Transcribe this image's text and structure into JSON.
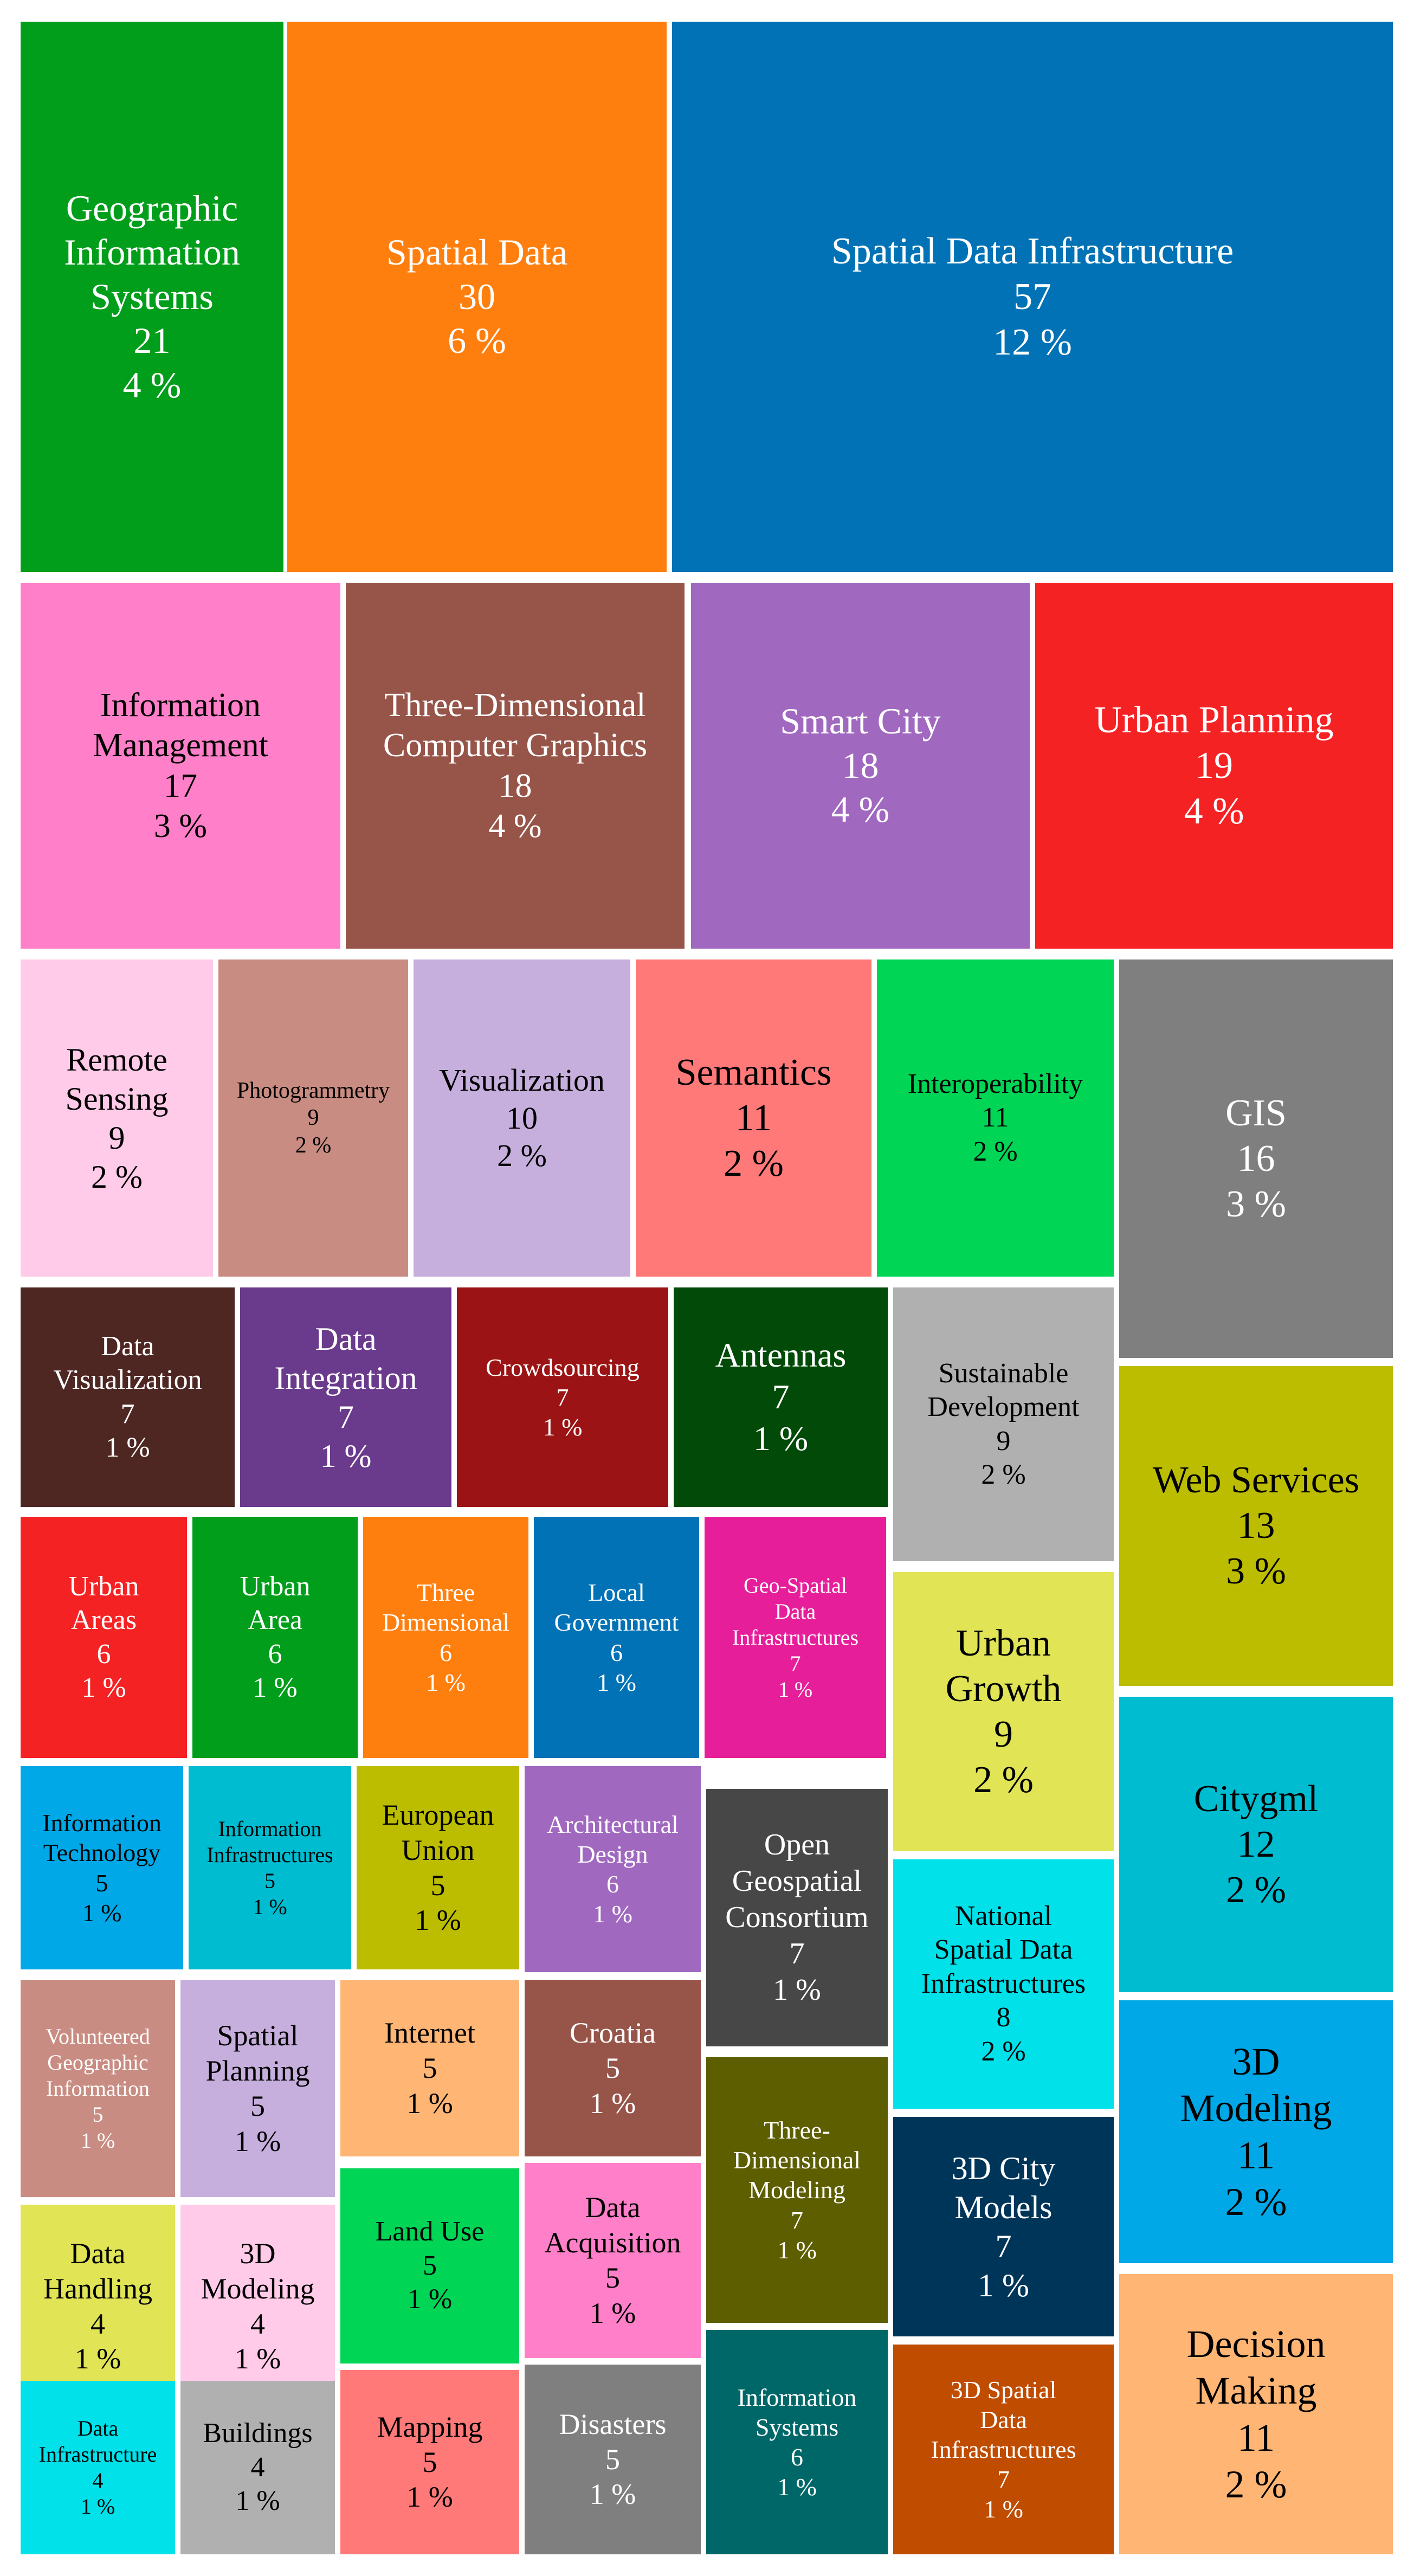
{
  "chart_data": {
    "type": "treemap",
    "title": "",
    "items": [
      {
        "label": "Geographic\nInformation\nSystems",
        "value": 21,
        "percent": "4 %",
        "color": "#009e1a",
        "text_color": "#ffffff"
      },
      {
        "label": "Spatial Data",
        "value": 30,
        "percent": "6 %",
        "color": "#ff7f0e",
        "text_color": "#ffffff"
      },
      {
        "label": "Spatial Data Infrastructure",
        "value": 57,
        "percent": "12 %",
        "color": "#0072b5",
        "text_color": "#ffffff"
      },
      {
        "label": "Information\nManagement",
        "value": 17,
        "percent": "3 %",
        "color": "#ff7fc8",
        "text_color": "#000000"
      },
      {
        "label": "Three-Dimensional\nComputer Graphics",
        "value": 18,
        "percent": "4 %",
        "color": "#975448",
        "text_color": "#ffffff"
      },
      {
        "label": "Smart City",
        "value": 18,
        "percent": "4 %",
        "color": "#a068bf",
        "text_color": "#ffffff"
      },
      {
        "label": "Urban Planning",
        "value": 19,
        "percent": "4 %",
        "color": "#f52224",
        "text_color": "#ffffff"
      },
      {
        "label": "Remote\nSensing",
        "value": 9,
        "percent": "2 %",
        "color": "#ffcbe9",
        "text_color": "#000000"
      },
      {
        "label": "Photogrammetry",
        "value": 9,
        "percent": "2 %",
        "color": "#c98c82",
        "text_color": "#000000"
      },
      {
        "label": "Visualization",
        "value": 10,
        "percent": "2 %",
        "color": "#c7afdd",
        "text_color": "#000000"
      },
      {
        "label": "Semantics",
        "value": 11,
        "percent": "2 %",
        "color": "#ff7979",
        "text_color": "#000000"
      },
      {
        "label": "Interoperability",
        "value": 11,
        "percent": "2 %",
        "color": "#00d555",
        "text_color": "#000000"
      },
      {
        "label": "GIS",
        "value": 16,
        "percent": "3 %",
        "color": "#7f7f7f",
        "text_color": "#ffffff"
      },
      {
        "label": "Data\nVisualization",
        "value": 7,
        "percent": "1 %",
        "color": "#4e2723",
        "text_color": "#ffffff"
      },
      {
        "label": "Data\nIntegration",
        "value": 7,
        "percent": "1 %",
        "color": "#6a3a8c",
        "text_color": "#ffffff"
      },
      {
        "label": "Crowdsourcing",
        "value": 7,
        "percent": "1 %",
        "color": "#9b1314",
        "text_color": "#ffffff"
      },
      {
        "label": "Antennas",
        "value": 7,
        "percent": "1 %",
        "color": "#024a07",
        "text_color": "#ffffff"
      },
      {
        "label": "Sustainable\nDevelopment",
        "value": 9,
        "percent": "2 %",
        "color": "#b0b0b0",
        "text_color": "#000000"
      },
      {
        "label": "Web Services",
        "value": 13,
        "percent": "3 %",
        "color": "#bcbd00",
        "text_color": "#000000"
      },
      {
        "label": "Urban\nAreas",
        "value": 6,
        "percent": "1 %",
        "color": "#f52224",
        "text_color": "#ffffff"
      },
      {
        "label": "Urban\nArea",
        "value": 6,
        "percent": "1 %",
        "color": "#009e1a",
        "text_color": "#ffffff"
      },
      {
        "label": "Three\nDimensional",
        "value": 6,
        "percent": "1 %",
        "color": "#ff7f0e",
        "text_color": "#ffffff"
      },
      {
        "label": "Local\nGovernment",
        "value": 6,
        "percent": "1 %",
        "color": "#0072b5",
        "text_color": "#ffffff"
      },
      {
        "label": "Geo-Spatial\nData\nInfrastructures",
        "value": 7,
        "percent": "1 %",
        "color": "#e61e9a",
        "text_color": "#ffffff"
      },
      {
        "label": "Urban\nGrowth",
        "value": 9,
        "percent": "2 %",
        "color": "#e0e455",
        "text_color": "#000000"
      },
      {
        "label": "Citygml",
        "value": 12,
        "percent": "2 %",
        "color": "#00bcd0",
        "text_color": "#000000"
      },
      {
        "label": "Information\nTechnology",
        "value": 5,
        "percent": "1 %",
        "color": "#00a8e7",
        "text_color": "#000000"
      },
      {
        "label": "Information\nInfrastructures",
        "value": 5,
        "percent": "1 %",
        "color": "#00bcd0",
        "text_color": "#000000"
      },
      {
        "label": "European\nUnion",
        "value": 5,
        "percent": "1 %",
        "color": "#bcbd00",
        "text_color": "#000000"
      },
      {
        "label": "Architectural\nDesign",
        "value": 6,
        "percent": "1 %",
        "color": "#a068bf",
        "text_color": "#ffffff"
      },
      {
        "label": "Open\nGeospatial\nConsortium",
        "value": 7,
        "percent": "1 %",
        "color": "#474747",
        "text_color": "#ffffff"
      },
      {
        "label": "National\nSpatial Data\nInfrastructures",
        "value": 8,
        "percent": "2 %",
        "color": "#00e1ea",
        "text_color": "#000000"
      },
      {
        "label": "3D\nModeling",
        "value": 11,
        "percent": "2 %",
        "color": "#00a8e7",
        "text_color": "#000000"
      },
      {
        "label": "Volunteered\nGeographic\nInformation",
        "value": 5,
        "percent": "1 %",
        "color": "#c98c82",
        "text_color": "#ffffff"
      },
      {
        "label": "Spatial\nPlanning",
        "value": 5,
        "percent": "1 %",
        "color": "#c7afdd",
        "text_color": "#000000"
      },
      {
        "label": "Internet",
        "value": 5,
        "percent": "1 %",
        "color": "#ffb574",
        "text_color": "#000000"
      },
      {
        "label": "Croatia",
        "value": 5,
        "percent": "1 %",
        "color": "#975448",
        "text_color": "#ffffff"
      },
      {
        "label": "Three-\nDimensional\nModeling",
        "value": 7,
        "percent": "1 %",
        "color": "#5d5e00",
        "text_color": "#ffffff"
      },
      {
        "label": "3D City\nModels",
        "value": 7,
        "percent": "1 %",
        "color": "#00355a",
        "text_color": "#ffffff"
      },
      {
        "label": "Decision\nMaking",
        "value": 11,
        "percent": "2 %",
        "color": "#ffb574",
        "text_color": "#000000"
      },
      {
        "label": "Data\nHandling",
        "value": 4,
        "percent": "1 %",
        "color": "#e0e455",
        "text_color": "#000000"
      },
      {
        "label": "3D\nModeling",
        "value": 4,
        "percent": "1 %",
        "color": "#ffcbe9",
        "text_color": "#000000"
      },
      {
        "label": "Land Use",
        "value": 5,
        "percent": "1 %",
        "color": "#00d555",
        "text_color": "#000000"
      },
      {
        "label": "Data\nAcquisition",
        "value": 5,
        "percent": "1 %",
        "color": "#ff7fc8",
        "text_color": "#000000"
      },
      {
        "label": "Data\nInfrastructure",
        "value": 4,
        "percent": "1 %",
        "color": "#00e1ea",
        "text_color": "#000000"
      },
      {
        "label": "Buildings",
        "value": 4,
        "percent": "1 %",
        "color": "#b0b0b0",
        "text_color": "#000000"
      },
      {
        "label": "Mapping",
        "value": 5,
        "percent": "1 %",
        "color": "#ff7979",
        "text_color": "#000000"
      },
      {
        "label": "Disasters",
        "value": 5,
        "percent": "1 %",
        "color": "#7f7f7f",
        "text_color": "#ffffff"
      },
      {
        "label": "Information\nSystems",
        "value": 6,
        "percent": "1 %",
        "color": "#006768",
        "text_color": "#ffffff"
      },
      {
        "label": "3D Spatial\nData\nInfrastructures",
        "value": 7,
        "percent": "1 %",
        "color": "#c04c00",
        "text_color": "#ffffff"
      }
    ]
  }
}
